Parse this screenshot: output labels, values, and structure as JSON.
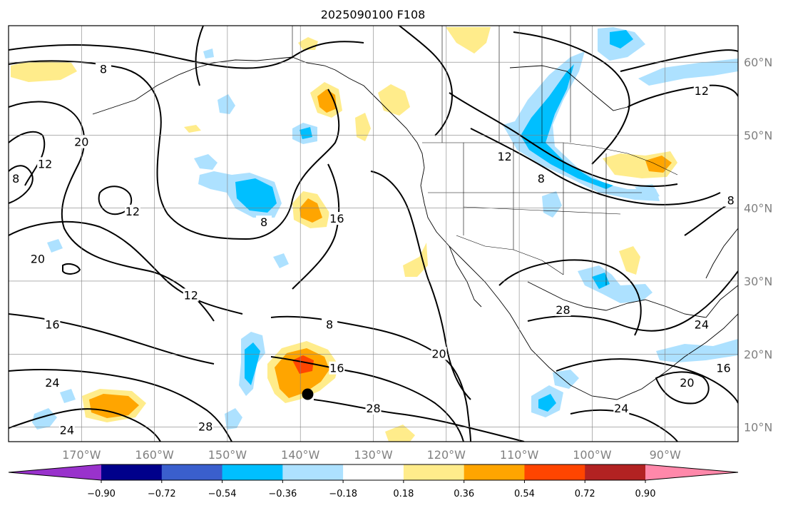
{
  "title": "2025090100 F108",
  "map": {
    "lon_range": [
      -180,
      -80
    ],
    "lat_range": [
      8,
      65
    ],
    "lat_ticks": [
      {
        "lat": 60,
        "label": "60°N"
      },
      {
        "lat": 50,
        "label": "50°N"
      },
      {
        "lat": 40,
        "label": "40°N"
      },
      {
        "lat": 30,
        "label": "30°N"
      },
      {
        "lat": 20,
        "label": "20°N"
      },
      {
        "lat": 10,
        "label": "10°N"
      }
    ],
    "lon_ticks": [
      {
        "lon": -170,
        "label": "170°W"
      },
      {
        "lon": -160,
        "label": "160°W"
      },
      {
        "lon": -150,
        "label": "150°W"
      },
      {
        "lon": -140,
        "label": "140°W"
      },
      {
        "lon": -130,
        "label": "130°W"
      },
      {
        "lon": -120,
        "label": "120°W"
      },
      {
        "lon": -110,
        "label": "110°W"
      },
      {
        "lon": -100,
        "label": "100°W"
      },
      {
        "lon": -90,
        "label": "90°W"
      }
    ],
    "gridlines": true,
    "storm_center": {
      "lon": -139,
      "lat": 14.5
    },
    "contour_labels": [
      {
        "text": "8",
        "lon": -167,
        "lat": 59
      },
      {
        "text": "12",
        "lon": -85,
        "lat": 56
      },
      {
        "text": "20",
        "lon": -170,
        "lat": 49
      },
      {
        "text": "12",
        "lon": -175,
        "lat": 46
      },
      {
        "text": "8",
        "lon": -179,
        "lat": 44
      },
      {
        "text": "12",
        "lon": -163,
        "lat": 39.5
      },
      {
        "text": "8",
        "lon": -145,
        "lat": 38
      },
      {
        "text": "16",
        "lon": -135,
        "lat": 38.5
      },
      {
        "text": "12",
        "lon": -112,
        "lat": 47
      },
      {
        "text": "8",
        "lon": -107,
        "lat": 44
      },
      {
        "text": "8",
        "lon": -81,
        "lat": 41
      },
      {
        "text": "20",
        "lon": -176,
        "lat": 33
      },
      {
        "text": "12",
        "lon": -155,
        "lat": 28
      },
      {
        "text": "16",
        "lon": -174,
        "lat": 24
      },
      {
        "text": "8",
        "lon": -136,
        "lat": 24
      },
      {
        "text": "28",
        "lon": -104,
        "lat": 26
      },
      {
        "text": "24",
        "lon": -85,
        "lat": 24
      },
      {
        "text": "20",
        "lon": -121,
        "lat": 20
      },
      {
        "text": "16",
        "lon": -135,
        "lat": 18
      },
      {
        "text": "16",
        "lon": -82,
        "lat": 18
      },
      {
        "text": "20",
        "lon": -87,
        "lat": 16
      },
      {
        "text": "24",
        "lon": -174,
        "lat": 16
      },
      {
        "text": "28",
        "lon": -130,
        "lat": 12.5
      },
      {
        "text": "24",
        "lon": -96,
        "lat": 12.5
      },
      {
        "text": "28",
        "lon": -153,
        "lat": 10
      },
      {
        "text": "24",
        "lon": -172,
        "lat": 9.5
      }
    ]
  },
  "colorbar": {
    "colors": [
      "#9932CC",
      "#00008B",
      "#3A5FCD",
      "#00BFFF",
      "#ADE1FF",
      "#FFFFFF",
      "#FFEC8B",
      "#FFA500",
      "#FF4500",
      "#B22222",
      "#FF88AA"
    ],
    "tick_labels": [
      "−0.90",
      "−0.72",
      "−0.54",
      "−0.36",
      "−0.18",
      "0.18",
      "0.36",
      "0.54",
      "0.72",
      "0.90"
    ],
    "extend": "both"
  }
}
